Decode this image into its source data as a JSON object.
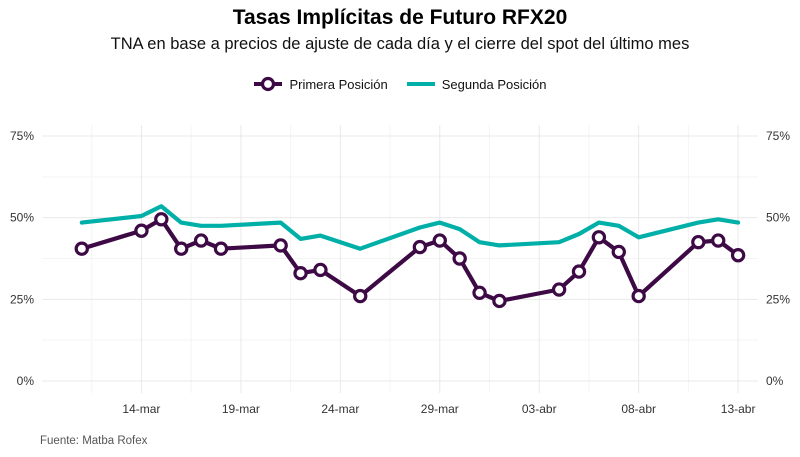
{
  "chart_data": {
    "type": "line",
    "title": "Tasas Implícitas de Futuro RFX20",
    "subtitle": "TNA en base a precios de ajuste de cada día y el cierre del spot del último mes",
    "caption": "Fuente: Matba Rofex",
    "xlabel": "",
    "ylabel": "",
    "x_domain": [
      "2021-03-09",
      "2021-04-14"
    ],
    "ylim": [
      0,
      75
    ],
    "yticks": [
      0,
      25,
      50,
      75
    ],
    "ytick_labels": [
      "0%",
      "25%",
      "50%",
      "75%"
    ],
    "xticks": [
      "2021-03-14",
      "2021-03-19",
      "2021-03-24",
      "2021-03-29",
      "2021-04-03",
      "2021-04-08",
      "2021-04-13"
    ],
    "xtick_labels": [
      "14-mar",
      "19-mar",
      "24-mar",
      "29-mar",
      "03-abr",
      "08-abr",
      "13-abr"
    ],
    "grid": true,
    "legend_position": "top",
    "series": [
      {
        "name": "Primera Posición",
        "color": "#3d0a45",
        "marker": "circle",
        "points": [
          {
            "x": "2021-03-11",
            "y": 40.5
          },
          {
            "x": "2021-03-14",
            "y": 46.0
          },
          {
            "x": "2021-03-15",
            "y": 49.5
          },
          {
            "x": "2021-03-16",
            "y": 40.5
          },
          {
            "x": "2021-03-17",
            "y": 43.0
          },
          {
            "x": "2021-03-18",
            "y": 40.5
          },
          {
            "x": "2021-03-21",
            "y": 41.5
          },
          {
            "x": "2021-03-22",
            "y": 33.0
          },
          {
            "x": "2021-03-23",
            "y": 34.0
          },
          {
            "x": "2021-03-25",
            "y": 26.0
          },
          {
            "x": "2021-03-28",
            "y": 41.0
          },
          {
            "x": "2021-03-29",
            "y": 43.0
          },
          {
            "x": "2021-03-30",
            "y": 37.5
          },
          {
            "x": "2021-03-31",
            "y": 27.0
          },
          {
            "x": "2021-04-01",
            "y": 24.5
          },
          {
            "x": "2021-04-04",
            "y": 28.0
          },
          {
            "x": "2021-04-05",
            "y": 33.5
          },
          {
            "x": "2021-04-06",
            "y": 44.0
          },
          {
            "x": "2021-04-07",
            "y": 39.5
          },
          {
            "x": "2021-04-08",
            "y": 26.0
          },
          {
            "x": "2021-04-11",
            "y": 42.5
          },
          {
            "x": "2021-04-12",
            "y": 43.0
          },
          {
            "x": "2021-04-13",
            "y": 38.5
          }
        ]
      },
      {
        "name": "Segunda Posición",
        "color": "#00b0a8",
        "marker": "none",
        "points": [
          {
            "x": "2021-03-11",
            "y": 48.5
          },
          {
            "x": "2021-03-14",
            "y": 50.5
          },
          {
            "x": "2021-03-15",
            "y": 53.5
          },
          {
            "x": "2021-03-16",
            "y": 48.5
          },
          {
            "x": "2021-03-17",
            "y": 47.5
          },
          {
            "x": "2021-03-18",
            "y": 47.5
          },
          {
            "x": "2021-03-21",
            "y": 48.5
          },
          {
            "x": "2021-03-22",
            "y": 43.5
          },
          {
            "x": "2021-03-23",
            "y": 44.5
          },
          {
            "x": "2021-03-25",
            "y": 40.5
          },
          {
            "x": "2021-03-28",
            "y": 47.0
          },
          {
            "x": "2021-03-29",
            "y": 48.5
          },
          {
            "x": "2021-03-30",
            "y": 46.5
          },
          {
            "x": "2021-03-31",
            "y": 42.5
          },
          {
            "x": "2021-04-01",
            "y": 41.5
          },
          {
            "x": "2021-04-04",
            "y": 42.5
          },
          {
            "x": "2021-04-05",
            "y": 45.0
          },
          {
            "x": "2021-04-06",
            "y": 48.5
          },
          {
            "x": "2021-04-07",
            "y": 47.5
          },
          {
            "x": "2021-04-08",
            "y": 44.0
          },
          {
            "x": "2021-04-11",
            "y": 48.5
          },
          {
            "x": "2021-04-12",
            "y": 49.5
          },
          {
            "x": "2021-04-13",
            "y": 48.5
          }
        ]
      }
    ]
  }
}
